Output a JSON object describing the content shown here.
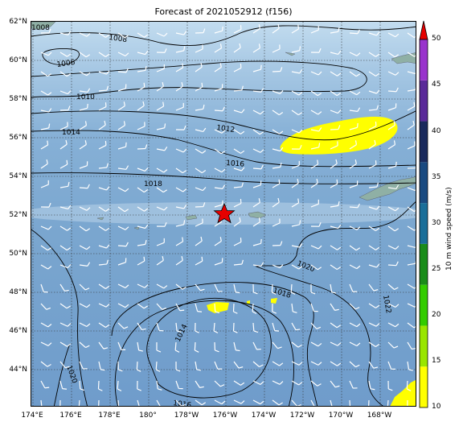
{
  "title": "Forecast of 2021052912 (f156)",
  "lat_labels": [
    "62°N",
    "60°N",
    "58°N",
    "56°N",
    "54°N",
    "52°N",
    "50°N",
    "48°N",
    "46°N",
    "44°N"
  ],
  "lon_labels": [
    "174°E",
    "176°E",
    "178°E",
    "180°",
    "178°W",
    "176°W",
    "174°W",
    "172°W",
    "170°W",
    "168°W"
  ],
  "isobar_labels": [
    "1008",
    "1008",
    "1006",
    "1010",
    "1012",
    "1014",
    "1016",
    "1018",
    "1020",
    "1018",
    "1022",
    "1014",
    "1016",
    "1020"
  ],
  "colorbar": {
    "title": "10 m wind speed (m/s)",
    "ticks": [
      "10",
      "15",
      "20",
      "25",
      "30",
      "35",
      "40",
      "45",
      "50"
    ],
    "colors": [
      "#ffff00",
      "#99e600",
      "#33cc00",
      "#1a8c1a",
      "#1a6e99",
      "#1a4a80",
      "#1a2a5c",
      "#5a2a99",
      "#9933cc"
    ],
    "extend_color": "#e60000"
  },
  "marker": {
    "symbol": "star",
    "color": "#e60000"
  },
  "colors": {
    "ocean": "#7aa6cf",
    "ocean_light": "#c2dcef",
    "land": "#8fb0a5",
    "high_wind": "#ffff00"
  }
}
